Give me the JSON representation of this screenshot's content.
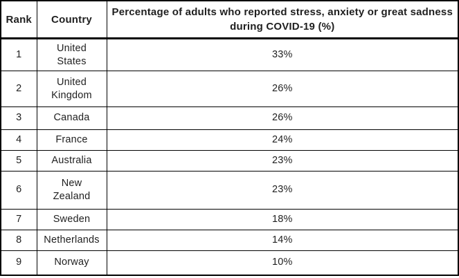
{
  "chart_data": {
    "type": "table",
    "title": "Percentage of adults who reported stress, anxiety or great sadness during COVID-19 (%)",
    "columns": [
      {
        "id": "rank",
        "label": "Rank"
      },
      {
        "id": "country",
        "label": "Country"
      },
      {
        "id": "percentage",
        "label": "Percentage of adults who reported stress, anxiety or great sadness during COVID-19 (%)"
      }
    ],
    "rows": [
      {
        "rank": "1",
        "country": "United States",
        "percentage": "33%"
      },
      {
        "rank": "2",
        "country": "United Kingdom",
        "percentage": "26%"
      },
      {
        "rank": "3",
        "country": "Canada",
        "percentage": "26%"
      },
      {
        "rank": "4",
        "country": "France",
        "percentage": "24%"
      },
      {
        "rank": "5",
        "country": "Australia",
        "percentage": "23%"
      },
      {
        "rank": "6",
        "country": "New Zealand",
        "percentage": "23%"
      },
      {
        "rank": "7",
        "country": "Sweden",
        "percentage": "18%"
      },
      {
        "rank": "8",
        "country": "Netherlands",
        "percentage": "14%"
      },
      {
        "rank": "9",
        "country": "Norway",
        "percentage": "10%"
      }
    ]
  },
  "colors": {
    "border": "#000000",
    "text": "#1f1f1f",
    "background": "#ffffff"
  }
}
